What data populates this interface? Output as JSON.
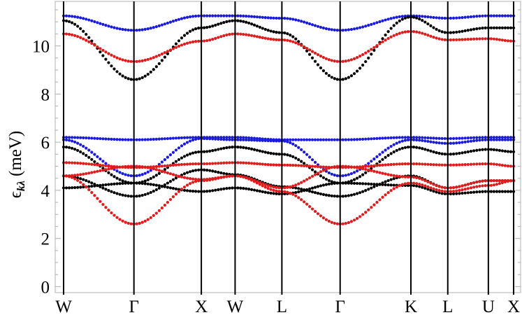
{
  "chart_data": {
    "type": "scatter",
    "ylabel_main": "ϵ",
    "ylabel_sub": "kλ",
    "ylabel_unit": "(meV)",
    "ylim": [
      -0.25,
      11.85
    ],
    "yticks": [
      0,
      2,
      4,
      6,
      8,
      10
    ],
    "x_segments": [
      {
        "from": "W",
        "to": "Γ"
      },
      {
        "from": "Γ",
        "to": "X"
      },
      {
        "from": "X",
        "to": "W"
      },
      {
        "from": "W",
        "to": "L"
      },
      {
        "from": "L",
        "to": "Γ"
      },
      {
        "from": "Γ",
        "to": "K"
      },
      {
        "from": "K",
        "to": "L"
      },
      {
        "from": "L",
        "to": "U"
      },
      {
        "from": "U",
        "to": "X"
      }
    ],
    "symmetry_points": [
      {
        "label": "W",
        "x": 0.0
      },
      {
        "label": "Γ",
        "x": 1.0
      },
      {
        "label": "X",
        "x": 1.958
      },
      {
        "label": "W",
        "x": 2.438
      },
      {
        "label": "L",
        "x": 3.103
      },
      {
        "label": "Γ",
        "x": 3.931
      },
      {
        "label": "K",
        "x": 4.937
      },
      {
        "label": "L",
        "x": 5.461
      },
      {
        "label": "U",
        "x": 6.038
      },
      {
        "label": "X",
        "x": 6.397
      }
    ],
    "series": [
      {
        "color": "#1a1adb",
        "band": 1,
        "values": [
          [
            11.25,
            10.65
          ],
          [
            10.65,
            11.25
          ],
          [
            11.25,
            11.25
          ],
          [
            11.25,
            11.15
          ],
          [
            11.15,
            10.65
          ],
          [
            10.65,
            11.25
          ],
          [
            11.25,
            11.15
          ],
          [
            11.15,
            11.25
          ],
          [
            11.25,
            11.25
          ]
        ]
      },
      {
        "color": "#000000",
        "band": 2,
        "values": [
          [
            11.05,
            8.6
          ],
          [
            8.6,
            10.75
          ],
          [
            10.75,
            11.05
          ],
          [
            11.05,
            10.55
          ],
          [
            10.55,
            8.6
          ],
          [
            8.6,
            11.2
          ],
          [
            11.2,
            10.55
          ],
          [
            10.55,
            10.75
          ],
          [
            10.75,
            10.75
          ]
        ]
      },
      {
        "color": "#e01b1b",
        "band": 3,
        "values": [
          [
            10.5,
            9.35
          ],
          [
            9.35,
            10.2
          ],
          [
            10.2,
            10.5
          ],
          [
            10.5,
            10.25
          ],
          [
            10.25,
            9.35
          ],
          [
            9.35,
            10.6
          ],
          [
            10.6,
            10.25
          ],
          [
            10.25,
            10.3
          ],
          [
            10.3,
            10.2
          ]
        ]
      },
      {
        "color": "#1a1adb",
        "band": 4,
        "values": [
          [
            6.2,
            6.1
          ],
          [
            6.1,
            6.2
          ],
          [
            6.2,
            6.2
          ],
          [
            6.2,
            6.1
          ],
          [
            6.1,
            6.1
          ],
          [
            6.1,
            6.2
          ],
          [
            6.2,
            6.15
          ],
          [
            6.15,
            6.2
          ],
          [
            6.2,
            6.2
          ]
        ]
      },
      {
        "color": "#1a1adb",
        "band": 5,
        "values": [
          [
            6.1,
            4.6
          ],
          [
            4.6,
            6.15
          ],
          [
            6.15,
            6.1
          ],
          [
            6.1,
            6.05
          ],
          [
            6.05,
            4.6
          ],
          [
            4.6,
            6.1
          ],
          [
            6.1,
            5.95
          ],
          [
            5.95,
            6.1
          ],
          [
            6.1,
            6.1
          ]
        ]
      },
      {
        "color": "#000000",
        "band": 6,
        "values": [
          [
            5.8,
            4.3
          ],
          [
            4.3,
            5.6
          ],
          [
            5.6,
            5.8
          ],
          [
            5.8,
            5.5
          ],
          [
            5.5,
            4.3
          ],
          [
            4.3,
            5.8
          ],
          [
            5.8,
            5.5
          ],
          [
            5.5,
            5.7
          ],
          [
            5.7,
            5.6
          ]
        ]
      },
      {
        "color": "#e01b1b",
        "band": 7,
        "values": [
          [
            5.15,
            4.95
          ],
          [
            4.95,
            5.1
          ],
          [
            5.1,
            5.15
          ],
          [
            5.15,
            5.05
          ],
          [
            5.05,
            4.95
          ],
          [
            4.95,
            5.1
          ],
          [
            5.1,
            5.05
          ],
          [
            5.05,
            5.1
          ],
          [
            5.1,
            5.0
          ]
        ]
      },
      {
        "color": "#000000",
        "band": 8,
        "values": [
          [
            4.6,
            3.75
          ],
          [
            3.75,
            4.85
          ],
          [
            4.85,
            4.65
          ],
          [
            4.65,
            4.15
          ],
          [
            4.15,
            3.75
          ],
          [
            3.75,
            4.6
          ],
          [
            4.6,
            4.1
          ],
          [
            4.1,
            4.4
          ],
          [
            4.4,
            4.4
          ]
        ]
      },
      {
        "color": "#e01b1b",
        "band": 9,
        "values": [
          [
            4.6,
            5.0
          ],
          [
            5.0,
            4.45
          ],
          [
            4.45,
            4.6
          ],
          [
            4.6,
            4.1
          ],
          [
            4.1,
            5.0
          ],
          [
            5.0,
            4.55
          ],
          [
            4.55,
            4.1
          ],
          [
            4.1,
            4.4
          ],
          [
            4.4,
            4.4
          ]
        ]
      },
      {
        "color": "#000000",
        "band": 10,
        "values": [
          [
            4.1,
            4.3
          ],
          [
            4.3,
            3.95
          ],
          [
            3.95,
            4.1
          ],
          [
            4.1,
            3.85
          ],
          [
            3.85,
            4.3
          ],
          [
            4.3,
            4.2
          ],
          [
            4.2,
            3.85
          ],
          [
            3.85,
            3.95
          ],
          [
            3.95,
            3.95
          ]
        ]
      },
      {
        "color": "#e01b1b",
        "band": 11,
        "values": [
          [
            4.6,
            2.6
          ],
          [
            2.6,
            4.4
          ],
          [
            4.4,
            4.6
          ],
          [
            4.6,
            3.95
          ],
          [
            3.95,
            2.6
          ],
          [
            2.6,
            4.3
          ],
          [
            4.3,
            3.95
          ],
          [
            3.95,
            4.2
          ],
          [
            4.2,
            4.4
          ]
        ]
      }
    ]
  }
}
